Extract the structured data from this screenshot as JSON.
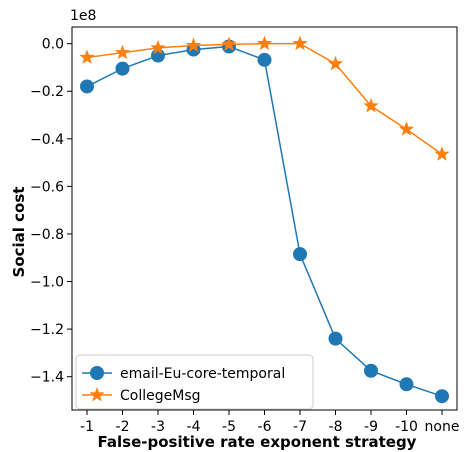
{
  "chart_data": {
    "type": "line",
    "xlabel": "False-positive rate exponent strategy",
    "ylabel": "Social cost",
    "offset_text": "1e8",
    "categories": [
      "-1",
      "-2",
      "-3",
      "-4",
      "-5",
      "-6",
      "-7",
      "-8",
      "-9",
      "-10",
      "none"
    ],
    "y_ticks": [
      "0.0",
      "−0.2",
      "−0.4",
      "−0.6",
      "−0.8",
      "−1.0",
      "−1.2",
      "−1.4"
    ],
    "ylim": [
      -1.54,
      0.07
    ],
    "grid": false,
    "legend_position": "lower-left",
    "series": [
      {
        "name": "email-Eu-core-temporal",
        "marker": "circle",
        "color": "#1f77b4",
        "values": [
          -0.18,
          -0.105,
          -0.05,
          -0.025,
          -0.012,
          -0.068,
          -0.885,
          -1.24,
          -1.375,
          -1.432,
          -1.482
        ]
      },
      {
        "name": "CollegeMsg",
        "marker": "star",
        "color": "#ff7f0e",
        "values": [
          -0.058,
          -0.038,
          -0.018,
          -0.008,
          -0.003,
          0.0,
          0.0,
          -0.085,
          -0.262,
          -0.36,
          -0.465
        ]
      }
    ]
  }
}
